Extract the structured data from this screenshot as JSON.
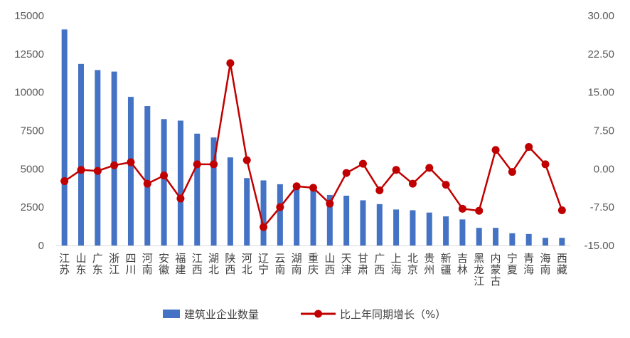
{
  "chart_data": {
    "type": "bar+line",
    "categories": [
      "江苏",
      "山东",
      "广东",
      "浙江",
      "四川",
      "河南",
      "安徽",
      "福建",
      "江西",
      "湖北",
      "陕西",
      "河北",
      "辽宁",
      "云南",
      "湖南",
      "重庆",
      "山西",
      "天津",
      "甘肃",
      "广西",
      "上海",
      "北京",
      "贵州",
      "新疆",
      "吉林",
      "黑龙江",
      "内蒙古",
      "宁夏",
      "青海",
      "海南",
      "西藏"
    ],
    "series": [
      {
        "name": "建筑业企业数量",
        "type": "bar",
        "axis": "left",
        "color": "#4472C4",
        "values": [
          14100,
          11850,
          11450,
          11350,
          9700,
          9100,
          8250,
          8150,
          7300,
          7050,
          5750,
          4400,
          4250,
          4000,
          3750,
          3600,
          3300,
          3250,
          2950,
          2700,
          2350,
          2300,
          2150,
          1900,
          1700,
          1150,
          1150,
          800,
          750,
          500,
          500
        ]
      },
      {
        "name": "比上年同期增长（%）",
        "type": "line",
        "axis": "right",
        "color": "#C00000",
        "values": [
          -2.4,
          -0.2,
          -0.4,
          0.7,
          1.3,
          -2.9,
          -1.3,
          -5.8,
          0.9,
          0.9,
          20.7,
          1.7,
          -11.4,
          -7.5,
          -3.4,
          -3.7,
          -6.8,
          -0.8,
          1.0,
          -4.2,
          -0.2,
          -2.9,
          0.2,
          -3.1,
          -7.8,
          -8.2,
          3.7,
          -0.6,
          4.3,
          0.9,
          -8.1
        ]
      }
    ],
    "y_left": {
      "min": 0,
      "max": 15000,
      "ticks": [
        "0",
        "2500",
        "5000",
        "7500",
        "10000",
        "12500",
        "15000"
      ]
    },
    "y_right": {
      "min": -15,
      "max": 30,
      "ticks": [
        "-15.00",
        "-7.50",
        "0.00",
        "7.50",
        "15.00",
        "22.50",
        "30.00"
      ]
    },
    "legend": {
      "position": "bottom",
      "items": [
        "建筑业企业数量",
        "比上年同期增长（%）"
      ]
    },
    "grid": false
  }
}
